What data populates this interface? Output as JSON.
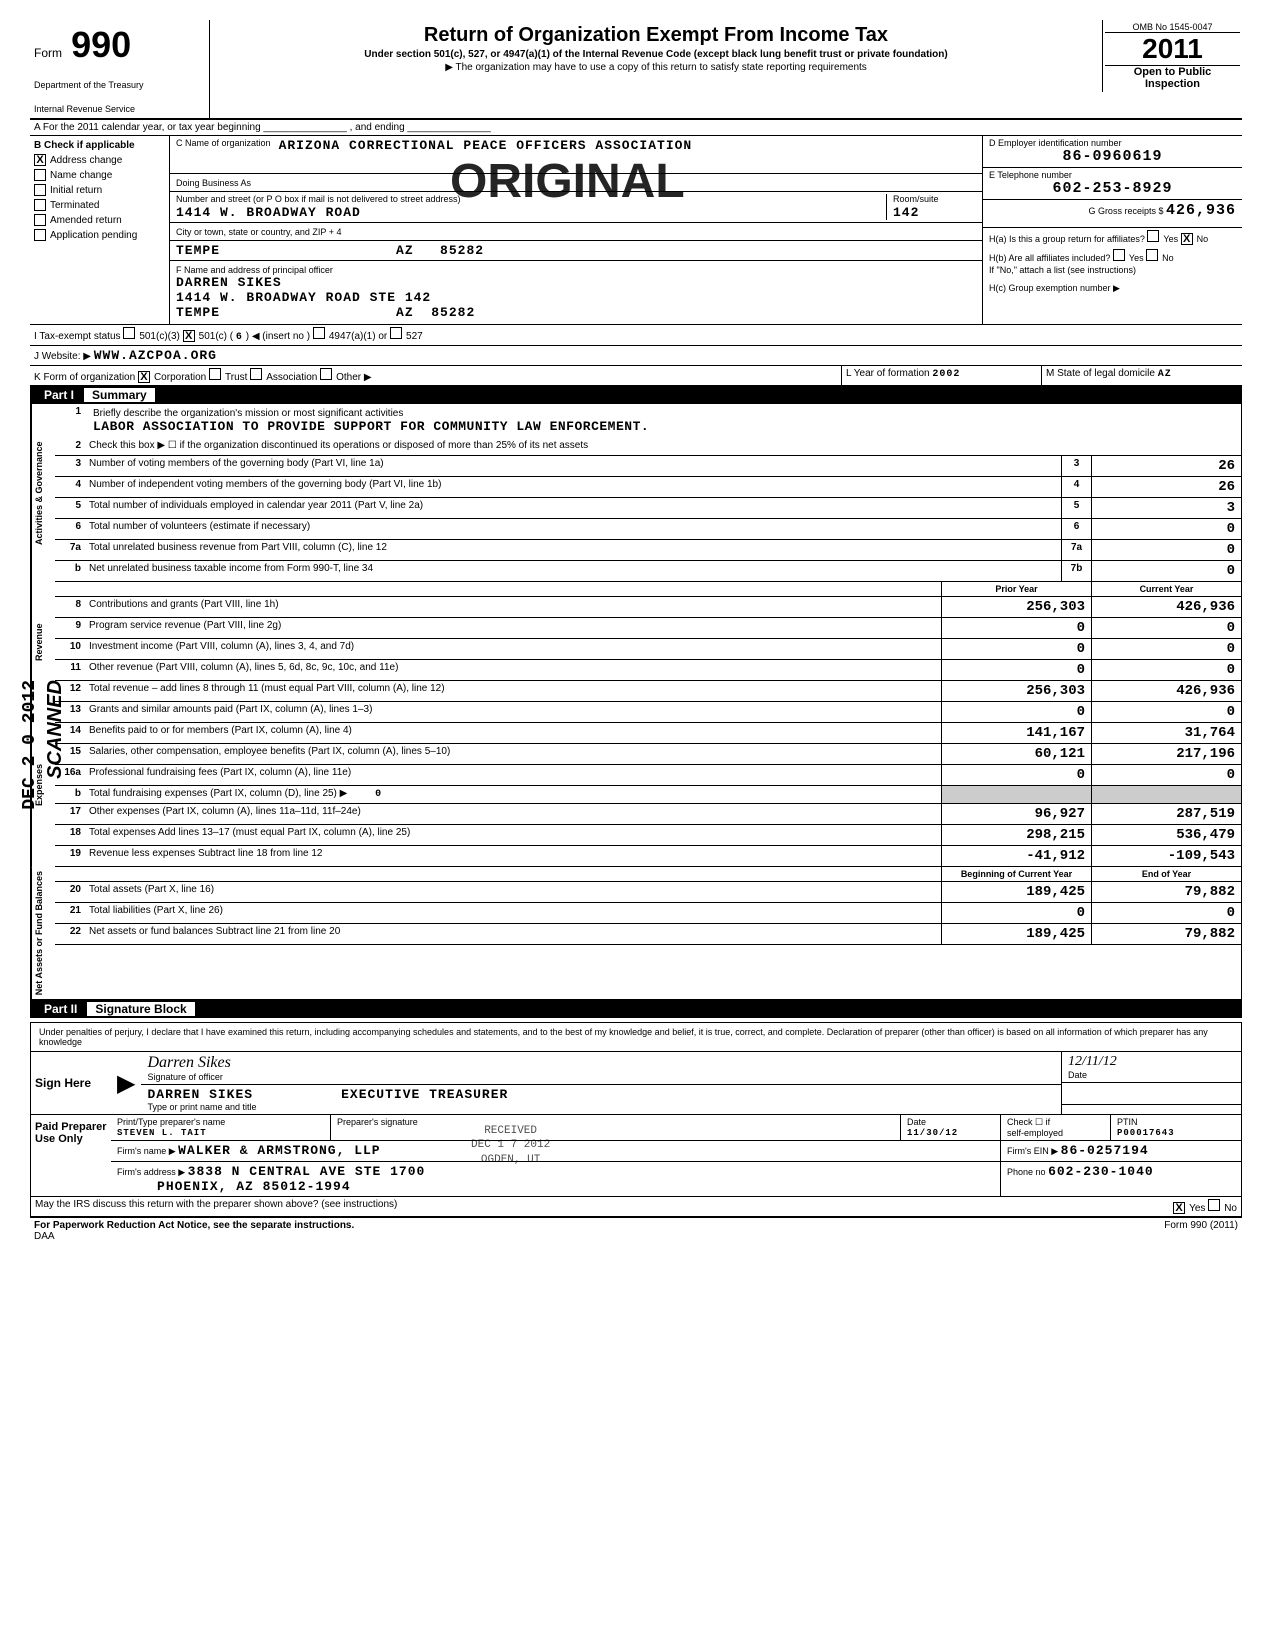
{
  "header": {
    "form_word": "Form",
    "form_number": "990",
    "dept": "Department of the Treasury",
    "irs": "Internal Revenue Service",
    "title": "Return of Organization Exempt From Income Tax",
    "subtitle": "Under section 501(c), 527, or 4947(a)(1) of the Internal Revenue Code (except black lung benefit trust or private foundation)",
    "note": "▶ The organization may have to use a copy of this return to satisfy state reporting requirements",
    "omb": "OMB No 1545-0047",
    "year": "2011",
    "open": "Open to Public Inspection"
  },
  "watermark": "ORIGINAL",
  "row_a": "A   For the 2011 calendar year, or tax year beginning _______________ , and ending _______________",
  "section_b": {
    "label": "B  Check if applicable",
    "checks": [
      {
        "checked": true,
        "label": "Address change"
      },
      {
        "checked": false,
        "label": "Name change"
      },
      {
        "checked": false,
        "label": "Initial return"
      },
      {
        "checked": false,
        "label": "Terminated"
      },
      {
        "checked": false,
        "label": "Amended return"
      },
      {
        "checked": false,
        "label": "Application pending"
      }
    ],
    "c_label": "C Name of organization",
    "c_value": "ARIZONA CORRECTIONAL PEACE OFFICERS ASSOCIATION",
    "dba_label": "Doing Business As",
    "dba_value": "",
    "addr_label": "Number and street (or P O box if mail is not delivered to street address)",
    "addr_value": "1414 W. BROADWAY ROAD",
    "room_label": "Room/suite",
    "room_value": "142",
    "city_label": "City or town, state or country, and ZIP + 4",
    "city_value": "TEMPE                    AZ   85282",
    "f_label": "F Name and address of principal officer",
    "f_name": "DARREN SIKES",
    "f_addr": "1414 W. BROADWAY ROAD STE 142",
    "f_city": "TEMPE                    AZ  85282",
    "d_label": "D   Employer identification number",
    "d_value": "86-0960619",
    "e_label": "E   Telephone number",
    "e_value": "602-253-8929",
    "g_label": "G Gross receipts $",
    "g_value": "426,936",
    "ha_label": "H(a)  Is this a group return for affiliates?",
    "ha_yes": "Yes",
    "ha_no": "No",
    "ha_checked": "No",
    "hb_label": "H(b)  Are all affiliates included?",
    "hb_yes": "Yes",
    "hb_no": "No",
    "hb_note": "If \"No,\" attach a list (see instructions)",
    "hc_label": "H(c)  Group exemption number ▶"
  },
  "row_i": {
    "label": "I    Tax-exempt status",
    "opt1": "501(c)(3)",
    "opt2_checked": true,
    "opt2": "501(c)",
    "opt2_num": "6",
    "opt2_suffix": "◀ (insert no )",
    "opt3": "4947(a)(1) or",
    "opt4": "527"
  },
  "row_j": {
    "label": "J    Website: ▶",
    "value": "WWW.AZCPOA.ORG"
  },
  "row_k": {
    "label": "K   Form of organization",
    "corp_checked": true,
    "corp": "Corporation",
    "trust": "Trust",
    "assoc": "Association",
    "other": "Other ▶",
    "l_label": "L  Year of formation",
    "l_value": "2002",
    "m_label": "M  State of legal domicile",
    "m_value": "AZ"
  },
  "part1": {
    "name": "Part I",
    "title": "Summary",
    "mission_num": "1",
    "mission_label": "Briefly describe the organization's mission or most significant activities",
    "mission_value": "LABOR ASSOCIATION TO PROVIDE SUPPORT FOR COMMUNITY LAW ENFORCEMENT.",
    "line2": "Check this box ▶ ☐  if the organization discontinued its operations or disposed of more than 25% of its net assets",
    "sections": {
      "gov_label": "Activities & Governance",
      "rev_label": "Revenue",
      "exp_label": "Expenses",
      "net_label": "Net Assets or Fund Balances"
    },
    "lines_single": [
      {
        "n": "3",
        "d": "Number of voting members of the governing body (Part VI, line 1a)",
        "box": "3",
        "v": "26"
      },
      {
        "n": "4",
        "d": "Number of independent voting members of the governing body (Part VI, line 1b)",
        "box": "4",
        "v": "26"
      },
      {
        "n": "5",
        "d": "Total number of individuals employed in calendar year 2011 (Part V, line 2a)",
        "box": "5",
        "v": "3"
      },
      {
        "n": "6",
        "d": "Total number of volunteers (estimate if necessary)",
        "box": "6",
        "v": "0"
      },
      {
        "n": "7a",
        "d": "Total unrelated business revenue from Part VIII, column (C), line 12",
        "box": "7a",
        "v": "0"
      },
      {
        "n": "b",
        "d": "Net unrelated business taxable income from Form 990-T, line 34",
        "box": "7b",
        "v": "0"
      }
    ],
    "col_prior": "Prior Year",
    "col_current": "Current Year",
    "lines_double": [
      {
        "n": "8",
        "d": "Contributions and grants (Part VIII, line 1h)",
        "p": "256,303",
        "c": "426,936"
      },
      {
        "n": "9",
        "d": "Program service revenue (Part VIII, line 2g)",
        "p": "0",
        "c": "0"
      },
      {
        "n": "10",
        "d": "Investment income (Part VIII, column (A), lines 3, 4, and 7d)",
        "p": "0",
        "c": "0"
      },
      {
        "n": "11",
        "d": "Other revenue (Part VIII, column (A), lines 5, 6d, 8c, 9c, 10c, and 11e)",
        "p": "0",
        "c": "0"
      },
      {
        "n": "12",
        "d": "Total revenue – add lines 8 through 11 (must equal Part VIII, column (A), line 12)",
        "p": "256,303",
        "c": "426,936"
      },
      {
        "n": "13",
        "d": "Grants and similar amounts paid (Part IX, column (A), lines 1–3)",
        "p": "0",
        "c": "0"
      },
      {
        "n": "14",
        "d": "Benefits paid to or for members (Part IX, column (A), line 4)",
        "p": "141,167",
        "c": "31,764"
      },
      {
        "n": "15",
        "d": "Salaries, other compensation, employee benefits (Part IX, column (A), lines 5–10)",
        "p": "60,121",
        "c": "217,196"
      },
      {
        "n": "16a",
        "d": "Professional fundraising fees (Part IX, column (A), line 11e)",
        "p": "0",
        "c": "0"
      }
    ],
    "line16b": {
      "n": "b",
      "d": "Total fundraising expenses (Part IX, column (D), line 25) ▶",
      "v": "0"
    },
    "lines_double2": [
      {
        "n": "17",
        "d": "Other expenses (Part IX, column (A), lines 11a–11d, 11f–24e)",
        "p": "96,927",
        "c": "287,519"
      },
      {
        "n": "18",
        "d": "Total expenses  Add lines 13–17 (must equal Part IX, column (A), line 25)",
        "p": "298,215",
        "c": "536,479"
      },
      {
        "n": "19",
        "d": "Revenue less expenses  Subtract line 18 from line 12",
        "p": "-41,912",
        "c": "-109,543"
      }
    ],
    "col_begin": "Beginning of Current Year",
    "col_end": "End of Year",
    "lines_net": [
      {
        "n": "20",
        "d": "Total assets (Part X, line 16)",
        "p": "189,425",
        "c": "79,882"
      },
      {
        "n": "21",
        "d": "Total liabilities (Part X, line 26)",
        "p": "0",
        "c": "0"
      },
      {
        "n": "22",
        "d": "Net assets or fund balances  Subtract line 21 from line 20",
        "p": "189,425",
        "c": "79,882"
      }
    ]
  },
  "part2": {
    "name": "Part II",
    "title": "Signature Block",
    "decl": "Under penalties of perjury, I declare that I have examined this return, including accompanying schedules and statements, and to the best of my knowledge and belief, it is true, correct, and complete. Declaration of preparer (other than officer) is based on all information of which preparer has any knowledge",
    "sign_here": "Sign Here",
    "sig_label": "Signature of officer",
    "sig_date": "12/11/12",
    "date_label": "Date",
    "name_value": "DARREN SIKES          EXECUTIVE TREASURER",
    "name_label": "Type or print name and title",
    "paid_label": "Paid Preparer Use Only",
    "prep_name_label": "Print/Type preparer's name",
    "prep_name": "STEVEN L. TAIT",
    "prep_sig_label": "Preparer's signature",
    "prep_date_label": "Date",
    "prep_date": "11/30/12",
    "self_emp": "self-employed",
    "check_label": "Check ☐ if",
    "ptin_label": "PTIN",
    "ptin": "P00017643",
    "firm_name_label": "Firm's name   ▶",
    "firm_name": "WALKER & ARMSTRONG, LLP",
    "firm_ein_label": "Firm's EIN ▶",
    "firm_ein": "86-0257194",
    "firm_addr_label": "Firm's address  ▶",
    "firm_addr1": "3838 N CENTRAL AVE STE 1700",
    "firm_addr2": "PHOENIX, AZ     85012-1994",
    "phone_label": "Phone no",
    "phone": "602-230-1040",
    "discuss": "May the IRS discuss this return with the preparer shown above? (see instructions)",
    "discuss_yes": "Yes",
    "discuss_no": "No",
    "discuss_checked": "Yes",
    "paperwork": "For Paperwork Reduction Act Notice, see the separate instructions.",
    "daa": "DAA",
    "form_foot": "Form 990 (2011)"
  },
  "stamps": {
    "date": "DEC 2 0 2012",
    "scan": "SCANNED",
    "received": "RECEIVED\nDEC 1 7 2012\nOGDEN, UT"
  }
}
